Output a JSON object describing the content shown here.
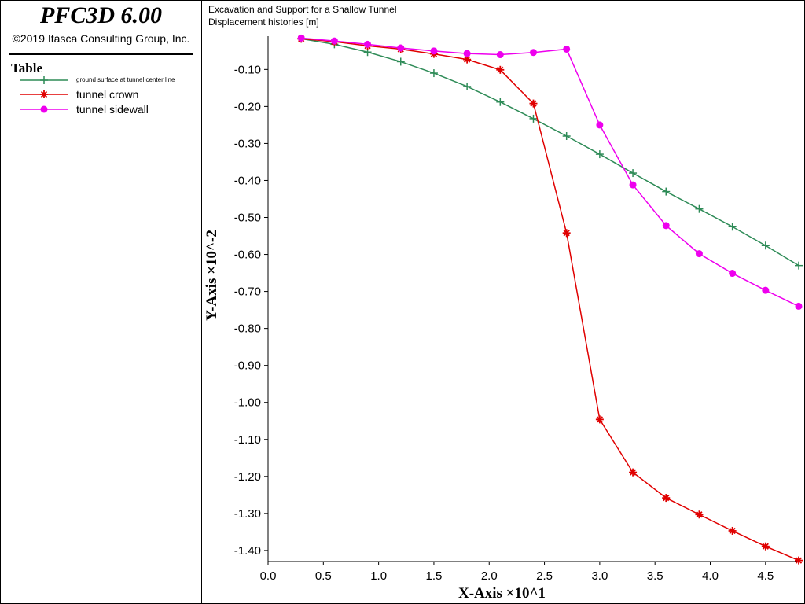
{
  "header": {
    "product": "PFC3D 6.00",
    "copyright": "©2019 Itasca Consulting Group, Inc."
  },
  "legend": {
    "title": "Table",
    "items": [
      {
        "label": "ground surface at tunnel center line"
      },
      {
        "label": "tunnel crown"
      },
      {
        "label": "tunnel sidewall"
      }
    ]
  },
  "chart_data": {
    "type": "line",
    "title": "Excavation and Support for a Shallow Tunnel",
    "subtitle": "Displacement histories [m]",
    "xlabel": "X-Axis ×10^1",
    "ylabel": "Y-Axis ×10^-2",
    "xlim": [
      0,
      4.8
    ],
    "ylim": [
      -1.43,
      -0.01
    ],
    "xticks": [
      0.0,
      0.5,
      1.0,
      1.5,
      2.0,
      2.5,
      3.0,
      3.5,
      4.0,
      4.5
    ],
    "xtick_labels": [
      "0.0",
      "0.5",
      "1.0",
      "1.5",
      "2.0",
      "2.5",
      "3.0",
      "3.5",
      "4.0",
      "4.5"
    ],
    "yticks": [
      -0.1,
      -0.2,
      -0.3,
      -0.4,
      -0.5,
      -0.6,
      -0.7,
      -0.8,
      -0.9,
      -1.0,
      -1.1,
      -1.2,
      -1.3,
      -1.4
    ],
    "ytick_labels": [
      "-0.10",
      "-0.20",
      "-0.30",
      "-0.40",
      "-0.50",
      "-0.60",
      "-0.70",
      "-0.80",
      "-0.90",
      "-1.00",
      "-1.10",
      "-1.20",
      "-1.30",
      "-1.40"
    ],
    "grid": false,
    "legend_position": "left-panel",
    "series": [
      {
        "name": "ground surface at tunnel center line",
        "color": "#2e8b57",
        "marker": "plus",
        "x": [
          0.3,
          0.6,
          0.9,
          1.2,
          1.5,
          1.8,
          2.1,
          2.4,
          2.7,
          3.0,
          3.3,
          3.6,
          3.9,
          4.2,
          4.5,
          4.8
        ],
        "y": [
          -0.017,
          -0.032,
          -0.053,
          -0.079,
          -0.11,
          -0.146,
          -0.188,
          -0.233,
          -0.28,
          -0.329,
          -0.38,
          -0.43,
          -0.477,
          -0.525,
          -0.576,
          -0.63
        ]
      },
      {
        "name": "tunnel crown",
        "color": "#e00000",
        "marker": "asterisk",
        "x": [
          0.3,
          0.6,
          0.9,
          1.2,
          1.5,
          1.8,
          2.1,
          2.4,
          2.7,
          3.0,
          3.3,
          3.6,
          3.9,
          4.2,
          4.5,
          4.8
        ],
        "y": [
          -0.017,
          -0.025,
          -0.036,
          -0.045,
          -0.058,
          -0.073,
          -0.101,
          -0.192,
          -0.542,
          -1.046,
          -1.189,
          -1.258,
          -1.303,
          -1.347,
          -1.389,
          -1.427
        ]
      },
      {
        "name": "tunnel sidewall",
        "color": "#ee00ee",
        "marker": "circle",
        "x": [
          0.3,
          0.6,
          0.9,
          1.2,
          1.5,
          1.8,
          2.1,
          2.4,
          2.7,
          3.0,
          3.3,
          3.6,
          3.9,
          4.2,
          4.5,
          4.8
        ],
        "y": [
          -0.015,
          -0.023,
          -0.032,
          -0.042,
          -0.05,
          -0.057,
          -0.06,
          -0.054,
          -0.045,
          -0.25,
          -0.412,
          -0.522,
          -0.598,
          -0.651,
          -0.697,
          -0.74
        ]
      }
    ]
  }
}
